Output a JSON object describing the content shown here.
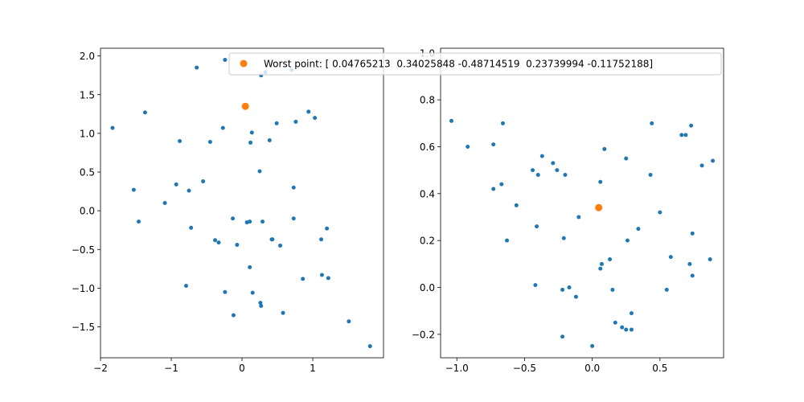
{
  "chart_data": [
    {
      "type": "scatter",
      "title": "",
      "xlabel": "",
      "ylabel": "",
      "xlim": [
        -2.0,
        2.0
      ],
      "ylim": [
        -1.9,
        2.1
      ],
      "xticks": [
        -2,
        -1,
        0,
        1
      ],
      "xtick_labels": [
        "−2",
        "−1",
        "0",
        "1"
      ],
      "yticks": [
        -1.5,
        -1.0,
        -0.5,
        0.0,
        0.5,
        1.0,
        1.5,
        2.0
      ],
      "ytick_labels": [
        "−1.5",
        "−1.0",
        "−0.5",
        "0.0",
        "0.5",
        "1.0",
        "1.5",
        "2.0"
      ],
      "grid": false,
      "series": [
        {
          "color": "#1f77b4",
          "marker": "small-dot",
          "points": [
            [
              -1.83,
              1.07
            ],
            [
              -1.53,
              0.27
            ],
            [
              -1.46,
              -0.14
            ],
            [
              -1.37,
              1.27
            ],
            [
              -1.09,
              0.1
            ],
            [
              -0.93,
              0.34
            ],
            [
              -0.88,
              0.9
            ],
            [
              -0.79,
              -0.97
            ],
            [
              -0.75,
              0.26
            ],
            [
              -0.72,
              -0.22
            ],
            [
              -0.64,
              1.85
            ],
            [
              -0.55,
              0.38
            ],
            [
              -0.45,
              0.89
            ],
            [
              -0.38,
              -0.38
            ],
            [
              -0.33,
              -0.41
            ],
            [
              -0.27,
              1.07
            ],
            [
              -0.24,
              -1.05
            ],
            [
              -0.24,
              1.95
            ],
            [
              -0.13,
              -0.1
            ],
            [
              -0.12,
              -1.35
            ],
            [
              -0.07,
              -0.44
            ],
            [
              0.07,
              -0.15
            ],
            [
              0.11,
              -0.14
            ],
            [
              0.11,
              -0.73
            ],
            [
              0.12,
              0.88
            ],
            [
              0.14,
              1.01
            ],
            [
              0.15,
              -1.06
            ],
            [
              0.25,
              0.51
            ],
            [
              0.26,
              -1.19
            ],
            [
              0.27,
              -1.23
            ],
            [
              0.27,
              1.75
            ],
            [
              0.29,
              -0.14
            ],
            [
              0.33,
              1.79
            ],
            [
              0.39,
              0.91
            ],
            [
              0.42,
              -0.37
            ],
            [
              0.43,
              -0.37
            ],
            [
              0.49,
              1.13
            ],
            [
              0.54,
              -0.45
            ],
            [
              0.58,
              -1.32
            ],
            [
              0.7,
              1.82
            ],
            [
              0.73,
              0.3
            ],
            [
              0.73,
              -0.1
            ],
            [
              0.76,
              1.15
            ],
            [
              0.86,
              -0.88
            ],
            [
              0.94,
              1.28
            ],
            [
              1.03,
              1.2
            ],
            [
              1.12,
              -0.37
            ],
            [
              1.13,
              -0.83
            ],
            [
              1.2,
              -0.23
            ],
            [
              1.22,
              -0.87
            ],
            [
              1.51,
              -1.43
            ],
            [
              1.81,
              -1.75
            ]
          ]
        },
        {
          "name": "Worst point: [ 0.04765213  0.34025848 -0.48714519  0.23739994 -0.11752188]",
          "color": "#ff7f0e",
          "marker": "dot",
          "points": [
            [
              0.04765213,
              1.35
            ]
          ]
        }
      ],
      "legend": {
        "placement": "upper-right",
        "entry": "Worst point: [ 0.04765213  0.34025848 -0.48714519  0.23739994 -0.11752188]"
      }
    },
    {
      "type": "scatter",
      "title": "",
      "xlabel": "",
      "ylabel": "",
      "xlim": [
        -1.12,
        0.97
      ],
      "ylim": [
        -0.3,
        1.02
      ],
      "xticks": [
        -1.0,
        -0.5,
        0.0,
        0.5
      ],
      "xtick_labels": [
        "−1.0",
        "−0.5",
        "0.0",
        "0.5"
      ],
      "yticks": [
        -0.2,
        0.0,
        0.2,
        0.4,
        0.6,
        0.8,
        1.0
      ],
      "ytick_labels": [
        "−0.2",
        "0.0",
        "0.2",
        "0.4",
        "0.6",
        "0.8",
        "1.0"
      ],
      "grid": false,
      "series": [
        {
          "color": "#1f77b4",
          "marker": "small-dot",
          "points": [
            [
              -1.04,
              0.71
            ],
            [
              -0.92,
              0.6
            ],
            [
              -0.73,
              0.61
            ],
            [
              -0.73,
              0.42
            ],
            [
              -0.67,
              0.44
            ],
            [
              -0.66,
              0.7
            ],
            [
              -0.63,
              0.2
            ],
            [
              -0.56,
              0.35
            ],
            [
              -0.44,
              0.5
            ],
            [
              -0.42,
              0.01
            ],
            [
              -0.41,
              0.26
            ],
            [
              -0.4,
              0.48
            ],
            [
              -0.37,
              0.56
            ],
            [
              -0.29,
              0.53
            ],
            [
              -0.26,
              0.5
            ],
            [
              -0.22,
              -0.01
            ],
            [
              -0.22,
              -0.21
            ],
            [
              -0.21,
              0.21
            ],
            [
              -0.2,
              0.48
            ],
            [
              -0.17,
              0.0
            ],
            [
              -0.12,
              -0.04
            ],
            [
              -0.1,
              0.3
            ],
            [
              0.0,
              -0.25
            ],
            [
              0.06,
              0.08
            ],
            [
              0.06,
              0.45
            ],
            [
              0.07,
              0.1
            ],
            [
              0.09,
              0.59
            ],
            [
              0.13,
              0.12
            ],
            [
              0.15,
              -0.01
            ],
            [
              0.17,
              -0.15
            ],
            [
              0.22,
              -0.17
            ],
            [
              0.25,
              0.55
            ],
            [
              0.25,
              -0.18
            ],
            [
              0.26,
              0.2
            ],
            [
              0.29,
              -0.18
            ],
            [
              0.29,
              -0.11
            ],
            [
              0.34,
              0.25
            ],
            [
              0.43,
              0.48
            ],
            [
              0.44,
              0.7
            ],
            [
              0.5,
              0.32
            ],
            [
              0.55,
              -0.01
            ],
            [
              0.58,
              0.13
            ],
            [
              0.66,
              0.65
            ],
            [
              0.69,
              0.65
            ],
            [
              0.72,
              0.1
            ],
            [
              0.73,
              0.69
            ],
            [
              0.74,
              0.05
            ],
            [
              0.74,
              0.23
            ],
            [
              0.81,
              0.52
            ],
            [
              0.87,
              0.12
            ],
            [
              0.89,
              0.54
            ]
          ]
        },
        {
          "color": "#ff7f0e",
          "marker": "dot",
          "points": [
            [
              0.04765213,
              0.34025848
            ]
          ]
        }
      ]
    }
  ]
}
